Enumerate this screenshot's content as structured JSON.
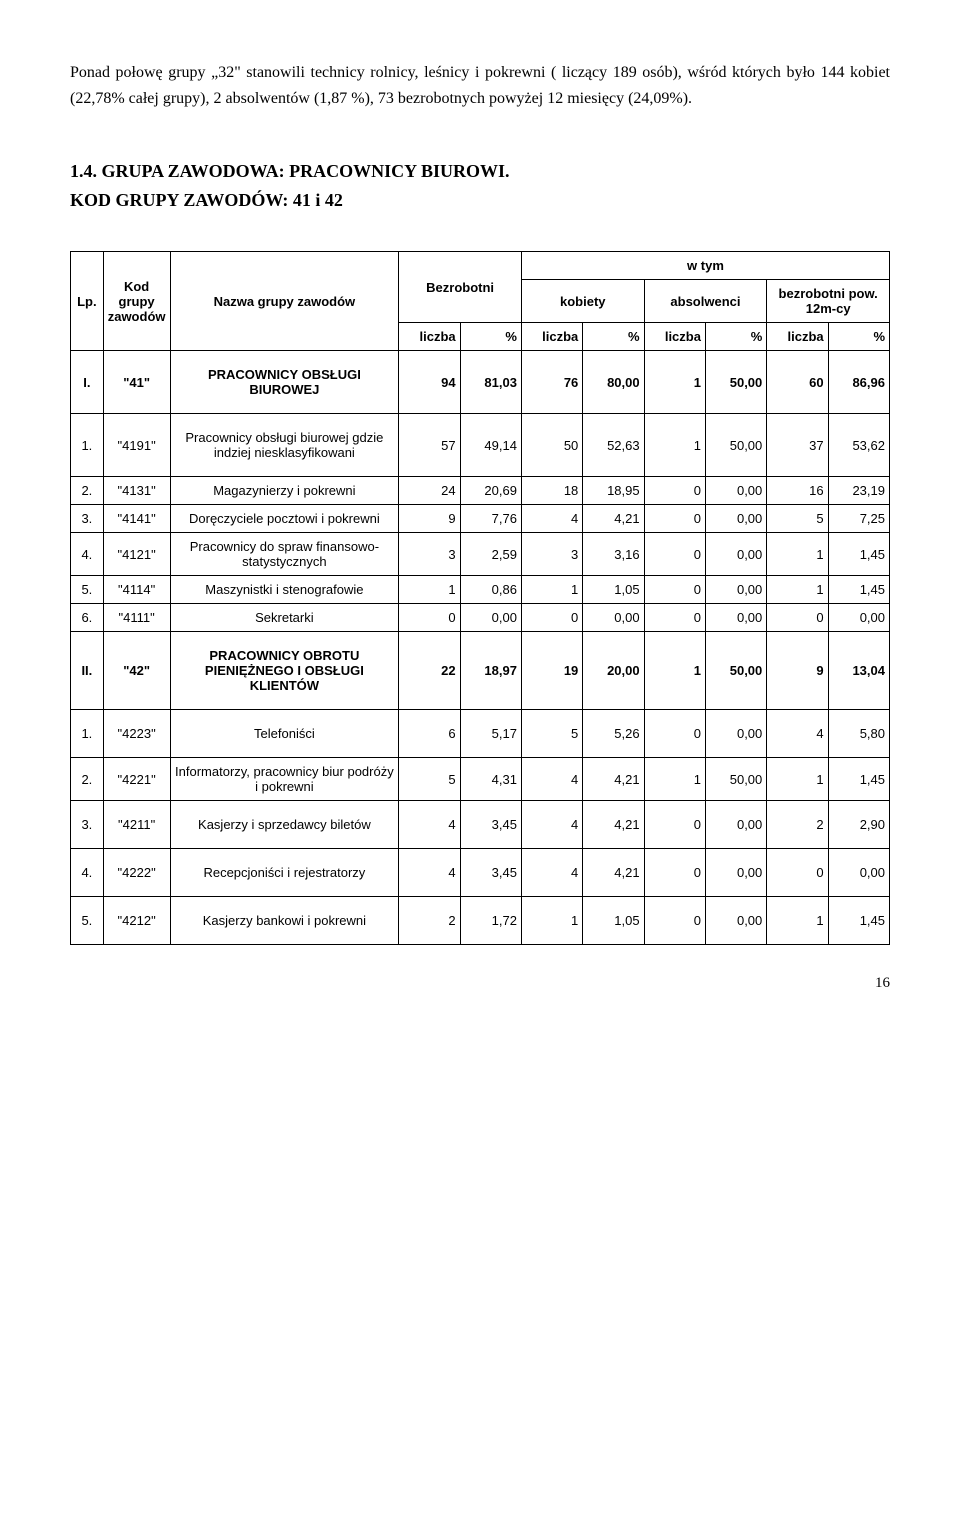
{
  "intro": "Ponad połowę grupy „32\" stanowili technicy rolnicy, leśnicy i pokrewni ( liczący 189 osób), wśród których było 144 kobiet (22,78% całej grupy), 2 absolwentów (1,87 %), 73 bezrobotnych powyżej 12 miesięcy (24,09%).",
  "section_title": "1.4. GRUPA ZAWODOWA: PRACOWNICY BIUROWI.",
  "section_sub": "KOD GRUPY ZAWODÓW:  41 i 42",
  "headers": {
    "lp": "Lp.",
    "kod": "Kod grupy zawodów",
    "nazwa": "Nazwa grupy zawodów",
    "bezrobotni": "Bezrobotni",
    "wtym": "w tym",
    "kobiety": "kobiety",
    "absolwenci": "absolwenci",
    "pow12": "bezrobotni pow. 12m-cy",
    "liczba": "liczba",
    "pct": "%"
  },
  "rows": [
    {
      "lp": "I.",
      "kod": "\"41\"",
      "nazwa": "PRACOWNICY OBSŁUGI BIUROWEJ",
      "v": [
        "94",
        "81,03",
        "76",
        "80,00",
        "1",
        "50,00",
        "60",
        "86,96"
      ],
      "bold": true,
      "spacer": true
    },
    {
      "lp": "1.",
      "kod": "\"4191\"",
      "nazwa": "Pracownicy obsługi biurowej gdzie indziej niesklasyfikowani",
      "v": [
        "57",
        "49,14",
        "50",
        "52,63",
        "1",
        "50,00",
        "37",
        "53,62"
      ],
      "bold": false,
      "spacer": true
    },
    {
      "lp": "2.",
      "kod": "\"4131\"",
      "nazwa": "Magazynierzy i pokrewni",
      "v": [
        "24",
        "20,69",
        "18",
        "18,95",
        "0",
        "0,00",
        "16",
        "23,19"
      ],
      "bold": false,
      "spacer": false
    },
    {
      "lp": "3.",
      "kod": "\"4141\"",
      "nazwa": "Doręczyciele pocztowi i pokrewni",
      "v": [
        "9",
        "7,76",
        "4",
        "4,21",
        "0",
        "0,00",
        "5",
        "7,25"
      ],
      "bold": false,
      "spacer": false
    },
    {
      "lp": "4.",
      "kod": "\"4121\"",
      "nazwa": "Pracownicy do spraw finansowo-statystycznych",
      "v": [
        "3",
        "2,59",
        "3",
        "3,16",
        "0",
        "0,00",
        "1",
        "1,45"
      ],
      "bold": false,
      "spacer": false
    },
    {
      "lp": "5.",
      "kod": "\"4114\"",
      "nazwa": "Maszynistki i stenografowie",
      "v": [
        "1",
        "0,86",
        "1",
        "1,05",
        "0",
        "0,00",
        "1",
        "1,45"
      ],
      "bold": false,
      "spacer": false
    },
    {
      "lp": "6.",
      "kod": "\"4111\"",
      "nazwa": "Sekretarki",
      "v": [
        "0",
        "0,00",
        "0",
        "0,00",
        "0",
        "0,00",
        "0",
        "0,00"
      ],
      "bold": false,
      "spacer": false
    },
    {
      "lp": "II.",
      "kod": "\"42\"",
      "nazwa": "PRACOWNICY OBROTU PIENIĘŻNEGO I OBSŁUGI KLIENTÓW",
      "v": [
        "22",
        "18,97",
        "19",
        "20,00",
        "1",
        "50,00",
        "9",
        "13,04"
      ],
      "bold": true,
      "spacer": true
    },
    {
      "lp": "1.",
      "kod": "\"4223\"",
      "nazwa": "Telefoniści",
      "v": [
        "6",
        "5,17",
        "5",
        "5,26",
        "0",
        "0,00",
        "4",
        "5,80"
      ],
      "bold": false,
      "spacer": true
    },
    {
      "lp": "2.",
      "kod": "\"4221\"",
      "nazwa": "Informatorzy, pracownicy biur podróży i pokrewni",
      "v": [
        "5",
        "4,31",
        "4",
        "4,21",
        "1",
        "50,00",
        "1",
        "1,45"
      ],
      "bold": false,
      "spacer": false
    },
    {
      "lp": "3.",
      "kod": "\"4211\"",
      "nazwa": "Kasjerzy i sprzedawcy biletów",
      "v": [
        "4",
        "3,45",
        "4",
        "4,21",
        "0",
        "0,00",
        "2",
        "2,90"
      ],
      "bold": false,
      "spacer": true
    },
    {
      "lp": "4.",
      "kod": "\"4222\"",
      "nazwa": "Recepcjoniści i rejestratorzy",
      "v": [
        "4",
        "3,45",
        "4",
        "4,21",
        "0",
        "0,00",
        "0",
        "0,00"
      ],
      "bold": false,
      "spacer": true
    },
    {
      "lp": "5.",
      "kod": "\"4212\"",
      "nazwa": "Kasjerzy bankowi i pokrewni",
      "v": [
        "2",
        "1,72",
        "1",
        "1,05",
        "0",
        "0,00",
        "1",
        "1,45"
      ],
      "bold": false,
      "spacer": true
    }
  ],
  "page_number": "16"
}
